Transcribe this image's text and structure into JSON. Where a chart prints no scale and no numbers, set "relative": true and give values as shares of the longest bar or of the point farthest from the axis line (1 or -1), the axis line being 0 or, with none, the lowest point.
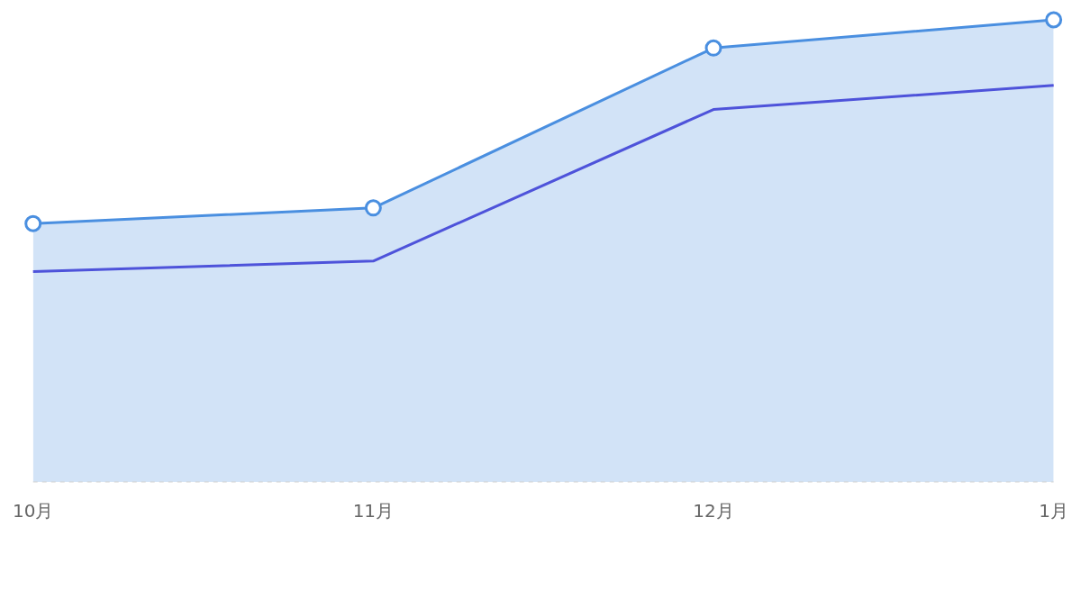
{
  "chart_data": {
    "type": "area",
    "relative": true,
    "categories": [
      "10月",
      "11月",
      "12月",
      "1月"
    ],
    "legend": false,
    "series": [
      {
        "color": "#4a8fe0",
        "marker": "circle",
        "values": [
          0.559,
          0.593,
          0.939,
          1
        ]
      },
      {
        "type": "line",
        "color": "#4f3fd9",
        "marker": "none",
        "values": [
          0.455,
          0.478,
          0.806,
          0.858
        ]
      }
    ]
  }
}
